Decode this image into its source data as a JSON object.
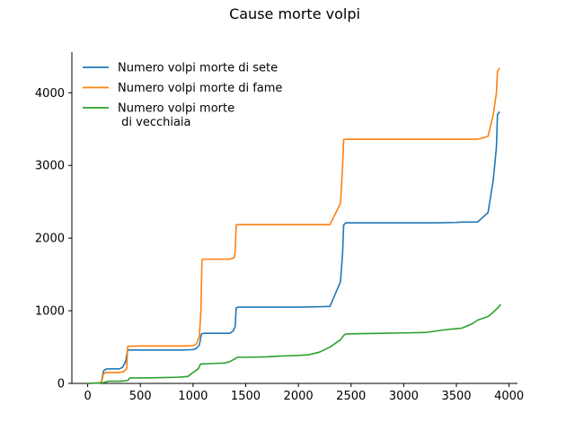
{
  "chart_data": {
    "type": "line",
    "title": "Cause morte volpi",
    "xlabel": "",
    "ylabel": "",
    "xlim": [
      -150,
      4080
    ],
    "ylim": [
      0,
      4560
    ],
    "xticks": [
      0,
      500,
      1000,
      1500,
      2000,
      2500,
      3000,
      3500,
      4000
    ],
    "yticks": [
      0,
      1000,
      2000,
      3000,
      4000
    ],
    "grid": false,
    "legend_position": "top-left",
    "series": [
      {
        "name": "Numero volpi morte di sete",
        "color": "#1f77b4",
        "points": [
          [
            0,
            0
          ],
          [
            100,
            5
          ],
          [
            130,
            10
          ],
          [
            150,
            170
          ],
          [
            170,
            195
          ],
          [
            200,
            200
          ],
          [
            300,
            200
          ],
          [
            330,
            220
          ],
          [
            360,
            300
          ],
          [
            380,
            460
          ],
          [
            500,
            460
          ],
          [
            700,
            460
          ],
          [
            900,
            460
          ],
          [
            1000,
            465
          ],
          [
            1030,
            480
          ],
          [
            1060,
            530
          ],
          [
            1080,
            680
          ],
          [
            1100,
            690
          ],
          [
            1200,
            690
          ],
          [
            1350,
            690
          ],
          [
            1380,
            720
          ],
          [
            1400,
            780
          ],
          [
            1410,
            1040
          ],
          [
            1430,
            1050
          ],
          [
            1600,
            1050
          ],
          [
            1800,
            1050
          ],
          [
            2000,
            1050
          ],
          [
            2200,
            1055
          ],
          [
            2300,
            1060
          ],
          [
            2400,
            1400
          ],
          [
            2420,
            1800
          ],
          [
            2430,
            2180
          ],
          [
            2450,
            2210
          ],
          [
            2600,
            2210
          ],
          [
            3000,
            2210
          ],
          [
            3300,
            2210
          ],
          [
            3500,
            2215
          ],
          [
            3550,
            2220
          ],
          [
            3700,
            2220
          ],
          [
            3800,
            2350
          ],
          [
            3850,
            2800
          ],
          [
            3880,
            3250
          ],
          [
            3890,
            3700
          ],
          [
            3910,
            3740
          ]
        ]
      },
      {
        "name": "Numero volpi morte di fame",
        "color": "#ff7f0e",
        "points": [
          [
            0,
            0
          ],
          [
            100,
            5
          ],
          [
            130,
            10
          ],
          [
            150,
            130
          ],
          [
            170,
            150
          ],
          [
            200,
            150
          ],
          [
            300,
            150
          ],
          [
            340,
            160
          ],
          [
            370,
            200
          ],
          [
            380,
            510
          ],
          [
            500,
            515
          ],
          [
            700,
            515
          ],
          [
            900,
            515
          ],
          [
            1000,
            520
          ],
          [
            1030,
            540
          ],
          [
            1060,
            650
          ],
          [
            1075,
            1000
          ],
          [
            1085,
            1700
          ],
          [
            1100,
            1710
          ],
          [
            1200,
            1710
          ],
          [
            1350,
            1710
          ],
          [
            1390,
            1730
          ],
          [
            1400,
            1800
          ],
          [
            1410,
            2180
          ],
          [
            1420,
            2185
          ],
          [
            1600,
            2185
          ],
          [
            1800,
            2185
          ],
          [
            2000,
            2185
          ],
          [
            2200,
            2185
          ],
          [
            2300,
            2185
          ],
          [
            2400,
            2480
          ],
          [
            2420,
            3000
          ],
          [
            2430,
            3355
          ],
          [
            2450,
            3360
          ],
          [
            2700,
            3360
          ],
          [
            3000,
            3360
          ],
          [
            3300,
            3360
          ],
          [
            3500,
            3360
          ],
          [
            3700,
            3360
          ],
          [
            3800,
            3400
          ],
          [
            3850,
            3700
          ],
          [
            3880,
            4000
          ],
          [
            3890,
            4300
          ],
          [
            3910,
            4340
          ]
        ]
      },
      {
        "name": "Numero volpi morte\n di vecchiaia",
        "color": "#2ca02c",
        "points": [
          [
            0,
            0
          ],
          [
            150,
            10
          ],
          [
            200,
            30
          ],
          [
            300,
            30
          ],
          [
            350,
            35
          ],
          [
            380,
            40
          ],
          [
            400,
            75
          ],
          [
            500,
            75
          ],
          [
            700,
            80
          ],
          [
            850,
            85
          ],
          [
            950,
            95
          ],
          [
            1000,
            150
          ],
          [
            1050,
            200
          ],
          [
            1070,
            265
          ],
          [
            1100,
            270
          ],
          [
            1200,
            275
          ],
          [
            1300,
            280
          ],
          [
            1350,
            300
          ],
          [
            1400,
            340
          ],
          [
            1420,
            360
          ],
          [
            1500,
            360
          ],
          [
            1700,
            365
          ],
          [
            1800,
            375
          ],
          [
            1900,
            380
          ],
          [
            2000,
            385
          ],
          [
            2100,
            395
          ],
          [
            2200,
            430
          ],
          [
            2300,
            500
          ],
          [
            2400,
            600
          ],
          [
            2430,
            660
          ],
          [
            2450,
            680
          ],
          [
            2600,
            685
          ],
          [
            2800,
            690
          ],
          [
            3000,
            695
          ],
          [
            3200,
            700
          ],
          [
            3400,
            740
          ],
          [
            3550,
            760
          ],
          [
            3650,
            820
          ],
          [
            3700,
            870
          ],
          [
            3800,
            920
          ],
          [
            3850,
            980
          ],
          [
            3900,
            1050
          ],
          [
            3920,
            1090
          ]
        ]
      }
    ]
  }
}
